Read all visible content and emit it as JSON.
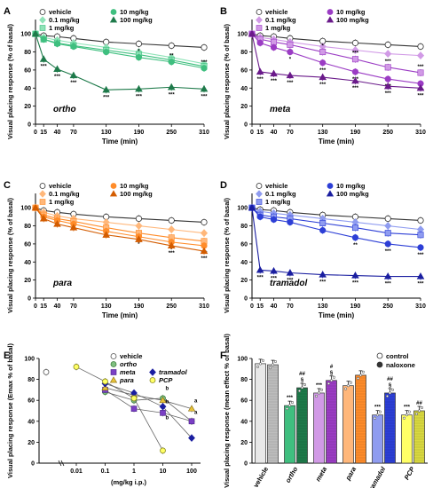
{
  "figure": {
    "width": 488,
    "height": 550
  },
  "colors": {
    "vehicle": "#ffffff",
    "ortho": "#3fbf7f",
    "ortho_dark": "#1e7a4a",
    "ortho_light": "#8fe3b8",
    "meta": "#9b3cc4",
    "meta_dark": "#6a1a8a",
    "meta_light": "#d19ae6",
    "para": "#ff8c2a",
    "para_dark": "#d35c00",
    "para_light": "#ffb77a",
    "tramadol": "#2d3fd6",
    "tramadol_dark": "#1a1ea0",
    "tramadol_light": "#8f9cf0",
    "pcp": "#ffff66",
    "panelE_ortho": "#7fbf7f",
    "panelE_meta": "#7a3fc4",
    "panelE_para": "#e6c23a"
  },
  "chart_data": [
    {
      "panel": "A",
      "type": "line",
      "compound": "ortho",
      "ylabel": "Visual placing response (% of basal)",
      "xlabel": "Time (min)",
      "x": [
        0,
        15,
        40,
        70,
        130,
        190,
        250,
        310
      ],
      "x_tick_labels": [
        "0",
        "15",
        "40",
        "70",
        "130",
        "190",
        "250",
        "310"
      ],
      "ylim": [
        0,
        110
      ],
      "y_ticks": [
        0,
        20,
        40,
        60,
        80,
        100
      ],
      "series": [
        {
          "name": "vehicle",
          "values": [
            100,
            98,
            97,
            95,
            91,
            89,
            87,
            85
          ],
          "sig": []
        },
        {
          "name": "0.1 mg/kg",
          "values": [
            100,
            96,
            93,
            90,
            85,
            80,
            74,
            67
          ],
          "sig": []
        },
        {
          "name": "1 mg/kg",
          "values": [
            100,
            94,
            90,
            87,
            82,
            77,
            71,
            64
          ],
          "sig": []
        },
        {
          "name": "10 mg/kg",
          "values": [
            100,
            94,
            89,
            86,
            80,
            74,
            69,
            62
          ],
          "sig": [
            "",
            "",
            "",
            "",
            "",
            "*",
            "**",
            "***"
          ]
        },
        {
          "name": "100 mg/kg",
          "values": [
            100,
            72,
            61,
            54,
            38,
            39,
            41,
            39
          ],
          "sig": [
            "",
            "***",
            "***",
            "***",
            "***",
            "***",
            "***",
            "***"
          ]
        }
      ]
    },
    {
      "panel": "B",
      "type": "line",
      "compound": "meta",
      "ylabel": "Visual placing response (% of basal)",
      "xlabel": "Time (min)",
      "x": [
        0,
        15,
        40,
        70,
        130,
        190,
        250,
        310
      ],
      "x_tick_labels": [
        "0",
        "15",
        "40",
        "70",
        "130",
        "190",
        "250",
        "310"
      ],
      "ylim": [
        0,
        110
      ],
      "y_ticks": [
        0,
        20,
        40,
        60,
        80,
        100
      ],
      "series": [
        {
          "name": "vehicle",
          "values": [
            100,
            98,
            97,
            95,
            92,
            90,
            88,
            86
          ],
          "sig": []
        },
        {
          "name": "0.1 mg/kg",
          "values": [
            100,
            96,
            94,
            91,
            86,
            82,
            78,
            76
          ],
          "sig": []
        },
        {
          "name": "1 mg/kg",
          "values": [
            100,
            94,
            91,
            88,
            80,
            72,
            63,
            57
          ],
          "sig": [
            "",
            "",
            "",
            "",
            "*",
            "***",
            "***",
            "***"
          ]
        },
        {
          "name": "10 mg/kg",
          "values": [
            100,
            90,
            85,
            80,
            68,
            58,
            50,
            45
          ],
          "sig": [
            "",
            "",
            "",
            "*",
            "***",
            "***",
            "***",
            "***"
          ]
        },
        {
          "name": "100 mg/kg",
          "values": [
            100,
            58,
            56,
            54,
            52,
            48,
            42,
            40
          ],
          "sig": [
            "",
            "***",
            "***",
            "***",
            "***",
            "***",
            "***",
            "***"
          ]
        }
      ]
    },
    {
      "panel": "C",
      "type": "line",
      "compound": "para",
      "ylabel": "Visual placing response (% of basal)",
      "xlabel": "Time (min)",
      "x": [
        0,
        15,
        40,
        70,
        130,
        190,
        250,
        310
      ],
      "x_tick_labels": [
        "0",
        "15",
        "40",
        "70",
        "130",
        "190",
        "250",
        "310"
      ],
      "ylim": [
        0,
        110
      ],
      "y_ticks": [
        0,
        20,
        40,
        60,
        80,
        100
      ],
      "series": [
        {
          "name": "vehicle",
          "values": [
            100,
            97,
            95,
            93,
            90,
            88,
            86,
            84
          ],
          "sig": []
        },
        {
          "name": "0.1 mg/kg",
          "values": [
            100,
            95,
            91,
            88,
            84,
            80,
            76,
            72
          ],
          "sig": []
        },
        {
          "name": "1 mg/kg",
          "values": [
            100,
            92,
            88,
            85,
            78,
            72,
            67,
            63
          ],
          "sig": []
        },
        {
          "name": "10 mg/kg",
          "values": [
            100,
            90,
            86,
            82,
            74,
            68,
            62,
            58
          ],
          "sig": [
            "",
            "",
            "",
            "",
            "",
            "*",
            "*",
            "***"
          ]
        },
        {
          "name": "100 mg/kg",
          "values": [
            100,
            88,
            82,
            78,
            70,
            65,
            58,
            52
          ],
          "sig": [
            "",
            "",
            "",
            "",
            "",
            "",
            "***",
            "***"
          ]
        }
      ]
    },
    {
      "panel": "D",
      "type": "line",
      "compound": "tramadol",
      "ylabel": "Visual placing response (% of basal)",
      "xlabel": "Time (min)",
      "x": [
        0,
        15,
        40,
        70,
        130,
        190,
        250,
        310
      ],
      "x_tick_labels": [
        "0",
        "15",
        "40",
        "70",
        "130",
        "190",
        "250",
        "310"
      ],
      "ylim": [
        0,
        110
      ],
      "y_ticks": [
        0,
        20,
        40,
        60,
        80,
        100
      ],
      "series": [
        {
          "name": "vehicle",
          "values": [
            100,
            98,
            97,
            95,
            92,
            90,
            88,
            86
          ],
          "sig": []
        },
        {
          "name": "0.1 mg/kg",
          "values": [
            100,
            96,
            94,
            92,
            88,
            84,
            80,
            76
          ],
          "sig": []
        },
        {
          "name": "1 mg/kg",
          "values": [
            100,
            92,
            90,
            88,
            83,
            78,
            72,
            70
          ],
          "sig": []
        },
        {
          "name": "10 mg/kg",
          "values": [
            100,
            90,
            87,
            84,
            75,
            67,
            60,
            56
          ],
          "sig": [
            "",
            "",
            "",
            "",
            "",
            "**",
            "***",
            "***"
          ]
        },
        {
          "name": "100 mg/kg",
          "values": [
            100,
            31,
            30,
            28,
            26,
            25,
            24,
            24
          ],
          "sig": [
            "",
            "***",
            "***",
            "***",
            "***",
            "***",
            "***",
            "***"
          ]
        }
      ]
    },
    {
      "panel": "E",
      "type": "scatter",
      "ylabel": "Visual placing response (Emax % of basal)",
      "xlabel": "(mg/kg i.p.)",
      "x_tick_labels": [
        "0.01",
        "0.1",
        "1",
        "10",
        "100"
      ],
      "ylim": [
        0,
        100
      ],
      "y_ticks": [
        0,
        20,
        40,
        60,
        80,
        100
      ],
      "series": [
        {
          "name": "vehicle",
          "points": [
            {
              "x": "vehicle",
              "y": 87
            }
          ]
        },
        {
          "name": "ortho",
          "points": [
            {
              "x": 0.1,
              "y": 68
            },
            {
              "x": 1,
              "y": 60
            },
            {
              "x": 10,
              "y": 62
            },
            {
              "x": 100,
              "y": 40
            }
          ]
        },
        {
          "name": "meta",
          "points": [
            {
              "x": 0.1,
              "y": 70
            },
            {
              "x": 1,
              "y": 52
            },
            {
              "x": 10,
              "y": 48
            },
            {
              "x": 100,
              "y": 40
            }
          ]
        },
        {
          "name": "para",
          "points": [
            {
              "x": 0.1,
              "y": 72
            },
            {
              "x": 1,
              "y": 65
            },
            {
              "x": 10,
              "y": 60
            },
            {
              "x": 100,
              "y": 52
            }
          ]
        },
        {
          "name": "tramadol",
          "points": [
            {
              "x": 0.1,
              "y": 76
            },
            {
              "x": 1,
              "y": 67
            },
            {
              "x": 10,
              "y": 54
            },
            {
              "x": 100,
              "y": 24
            }
          ]
        },
        {
          "name": "PCP",
          "points": [
            {
              "x": 0.01,
              "y": 92
            },
            {
              "x": 0.1,
              "y": 78
            },
            {
              "x": 1,
              "y": 62
            },
            {
              "x": 10,
              "y": 12
            }
          ]
        }
      ],
      "annotations": [
        {
          "text": "b",
          "x": 10,
          "y": 70
        },
        {
          "text": "b",
          "x": 10,
          "y": 57
        },
        {
          "text": "b",
          "x": 10,
          "y": 42
        },
        {
          "text": "a",
          "x": 100,
          "y": 58
        },
        {
          "text": "a",
          "x": 100,
          "y": 47
        }
      ]
    },
    {
      "panel": "F",
      "type": "bar",
      "ylabel": "Visual placing response (mean effect % of basal)",
      "categories": [
        "vehicle",
        "ortho",
        "meta",
        "para",
        "tramadol",
        "PCP"
      ],
      "ylim": [
        0,
        100
      ],
      "y_ticks": [
        0,
        20,
        40,
        60,
        80,
        100
      ],
      "series": [
        {
          "name": "control",
          "values": [
            95,
            55,
            67,
            74,
            46,
            46
          ]
        },
        {
          "name": "naloxone",
          "values": [
            94,
            72,
            79,
            84,
            67,
            50
          ]
        }
      ],
      "sig_control": [
        "",
        "***",
        "***",
        "",
        "***",
        "***"
      ],
      "sig_naloxone": [
        "",
        "§ ##",
        "§ #",
        "",
        "§ ##",
        "##"
      ]
    }
  ]
}
